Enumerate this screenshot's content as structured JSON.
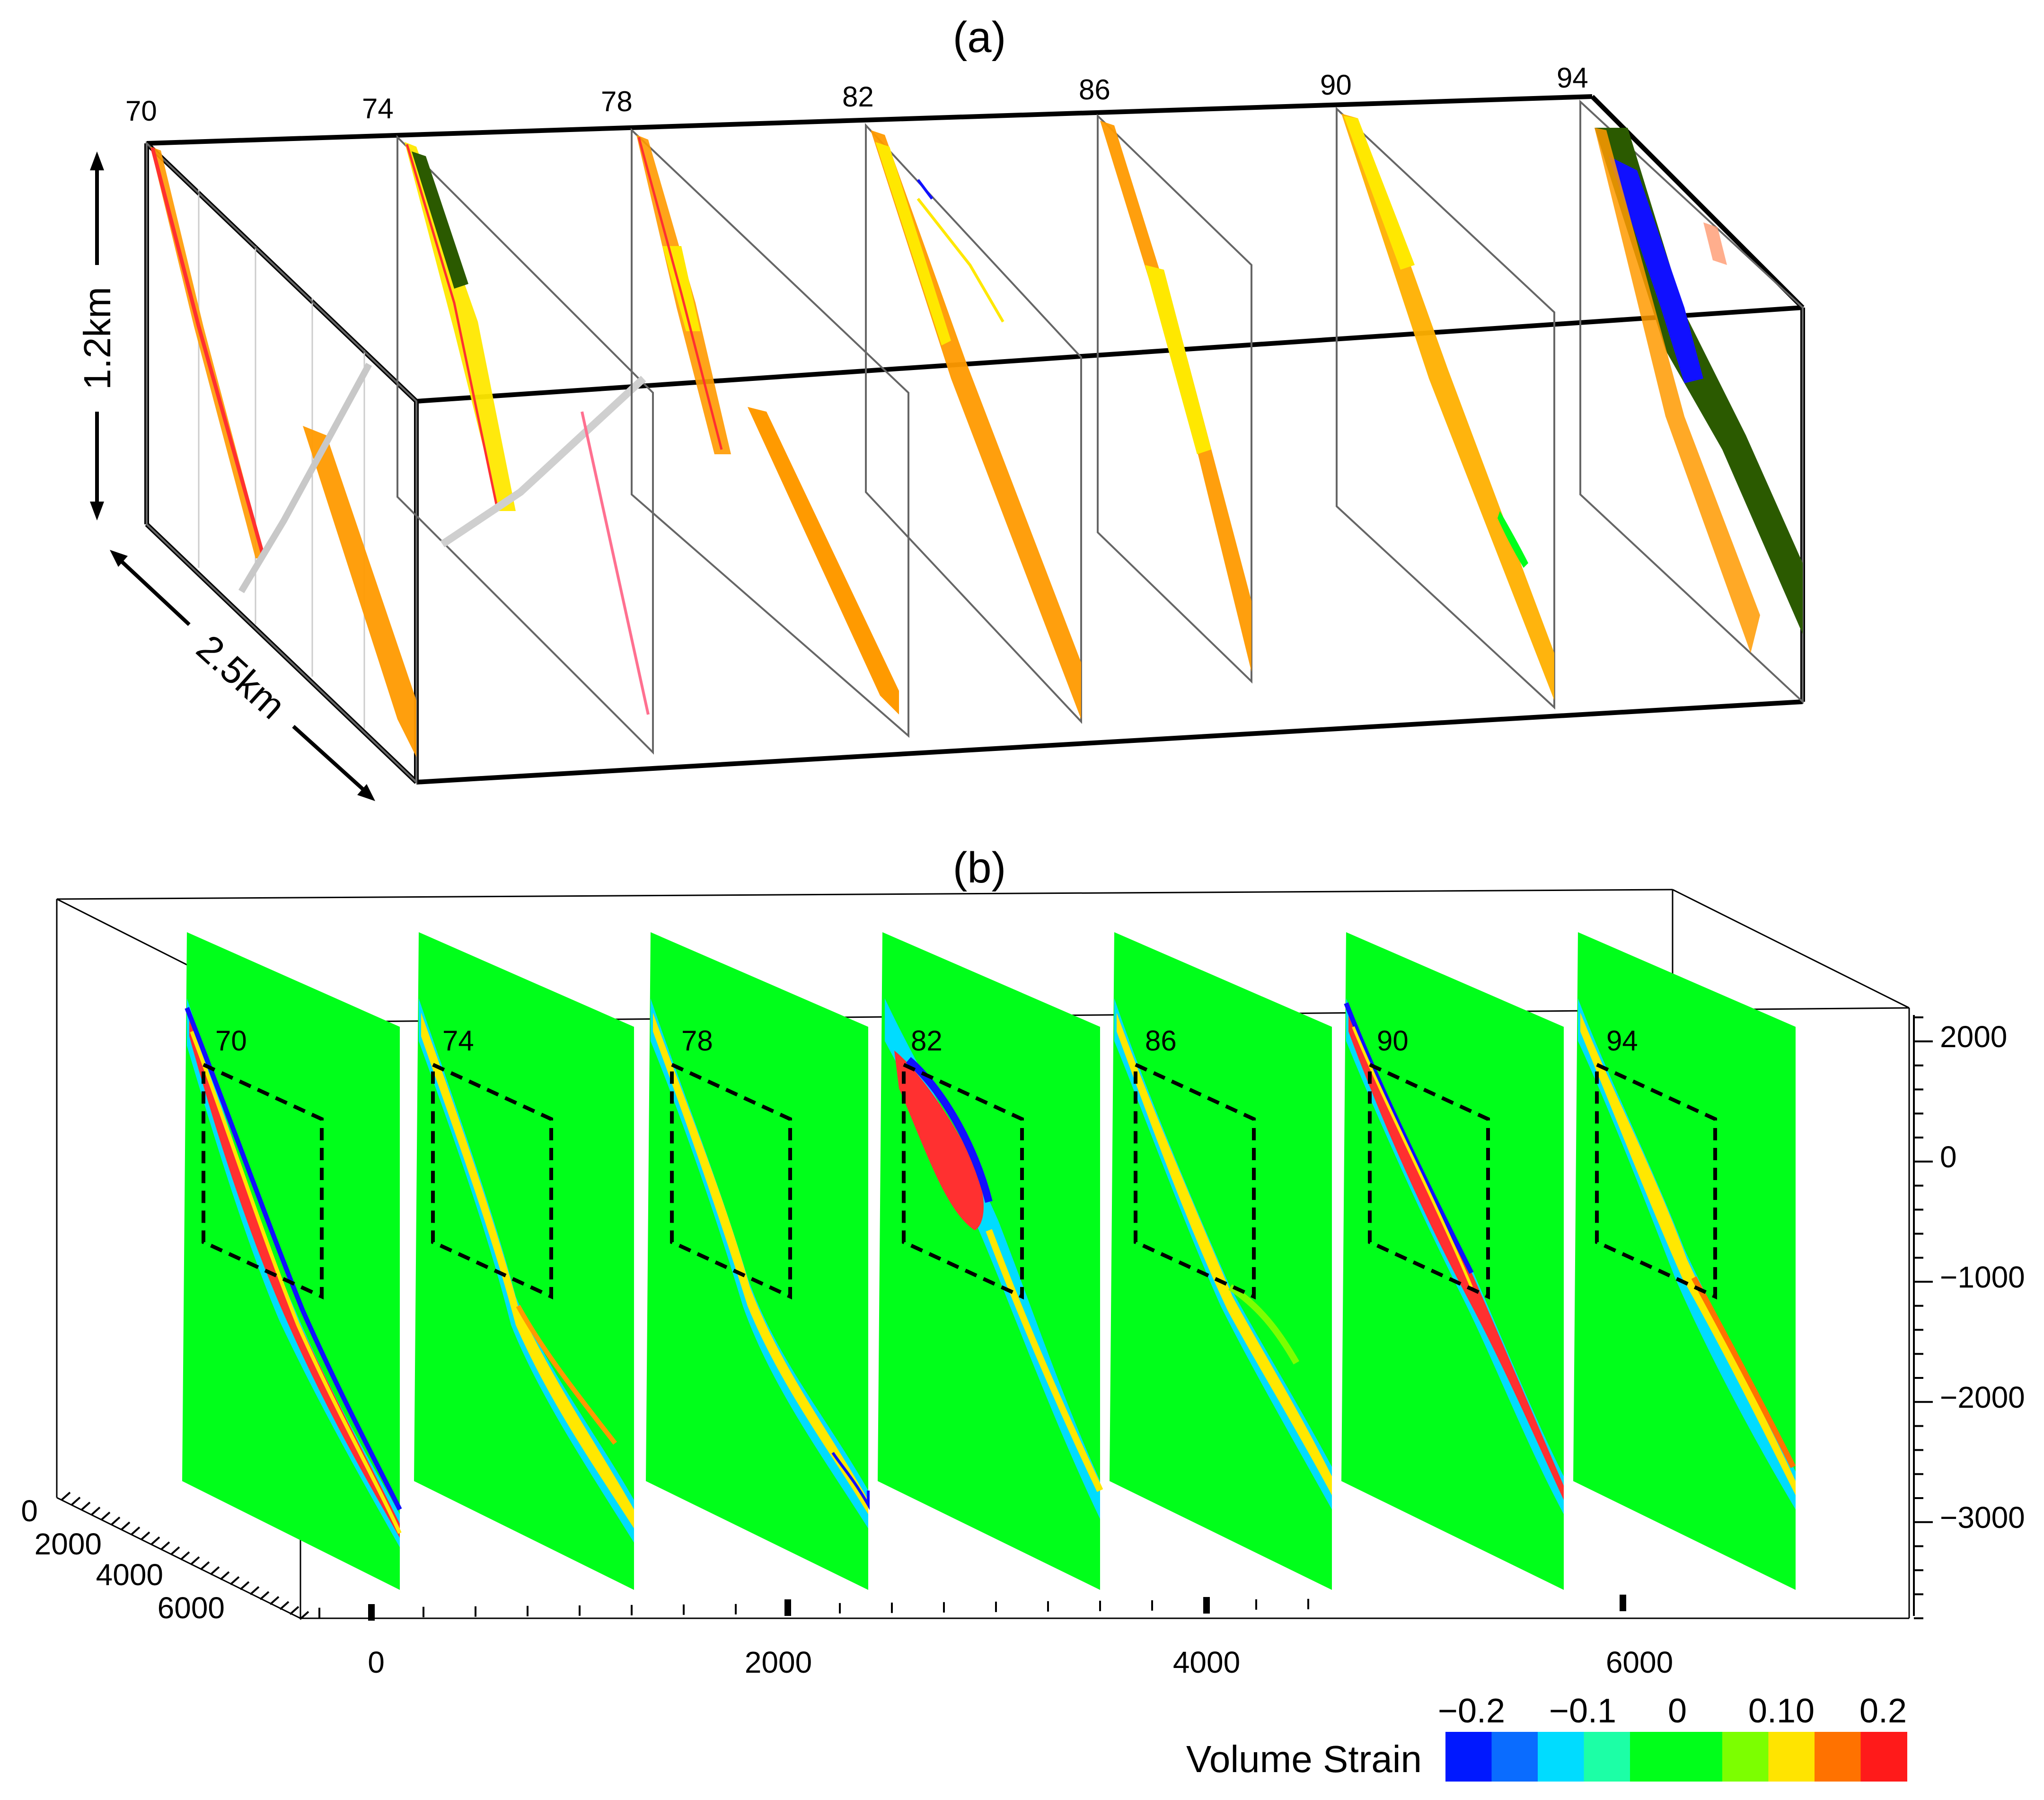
{
  "panel_a": {
    "label": "(a)",
    "section_labels": [
      "70",
      "74",
      "78",
      "82",
      "86",
      "90",
      "94"
    ],
    "height_label": "1.2km",
    "length_label": "2.5km"
  },
  "panel_b": {
    "label": "(b)",
    "section_labels": [
      "70",
      "74",
      "78",
      "82",
      "86",
      "90",
      "94"
    ],
    "z_ticks": [
      "2000",
      "0",
      "−1000",
      "−2000",
      "−3000"
    ],
    "x_ticks": [
      "0",
      "2000",
      "4000",
      "6000"
    ],
    "y_ticks": [
      "0",
      "2000",
      "4000",
      "6000"
    ]
  },
  "colorbar": {
    "title": "Volume  Strain",
    "tick_labels": [
      "−0.2",
      "−0.1",
      "0",
      "0.10",
      "0.2"
    ],
    "colors": [
      "#0018ff",
      "#0a6cff",
      "#00dcff",
      "#1cffa6",
      "#00ff1a",
      "#00ff1a",
      "#7cff00",
      "#ffe400",
      "#ff7200",
      "#ff1a1a"
    ]
  },
  "colors": {
    "orange": "#ff9a00",
    "yellow": "#ffe800",
    "red": "#ff3030",
    "dark_green": "#2b5a00",
    "blue": "#1010ff",
    "bright_green": "#00ff1a",
    "cyan": "#00dcff",
    "box_line": "#000000"
  }
}
